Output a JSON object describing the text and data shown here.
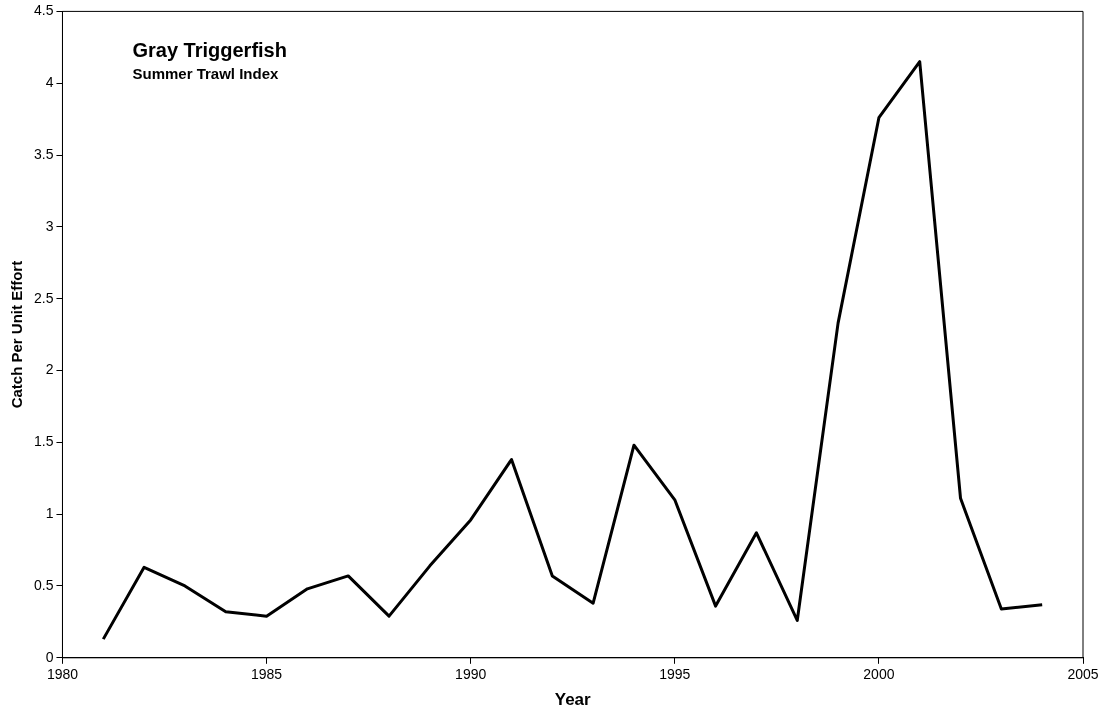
{
  "chart_data": {
    "type": "line",
    "title": "Gray Triggerfish",
    "subtitle": "Summer Trawl Index",
    "xlabel": "Year",
    "ylabel": "Catch Per Unit Effort",
    "x": [
      1981,
      1982,
      1983,
      1984,
      1985,
      1986,
      1987,
      1988,
      1989,
      1990,
      1991,
      1992,
      1993,
      1994,
      1995,
      1996,
      1997,
      1998,
      1999,
      2000,
      2001,
      2002,
      2003,
      2004
    ],
    "series": [
      {
        "color": "#000000",
        "values": [
          0.13,
          0.63,
          0.5,
          0.32,
          0.29,
          0.48,
          0.57,
          0.29,
          0.64,
          0.96,
          1.38,
          0.57,
          0.38,
          1.48,
          1.1,
          0.36,
          0.87,
          0.26,
          2.33,
          3.76,
          4.15,
          1.11,
          0.34,
          0.37
        ]
      }
    ],
    "xlim": [
      1980,
      2005
    ],
    "xticks": [
      1980,
      1985,
      1990,
      1995,
      2000,
      2005
    ],
    "ylim": [
      0,
      4.5
    ],
    "yticks": [
      0,
      0.5,
      1,
      1.5,
      2,
      2.5,
      3,
      3.5,
      4,
      4.5
    ],
    "grid": false,
    "legend": false,
    "marker": "none",
    "line_style": "solid"
  }
}
